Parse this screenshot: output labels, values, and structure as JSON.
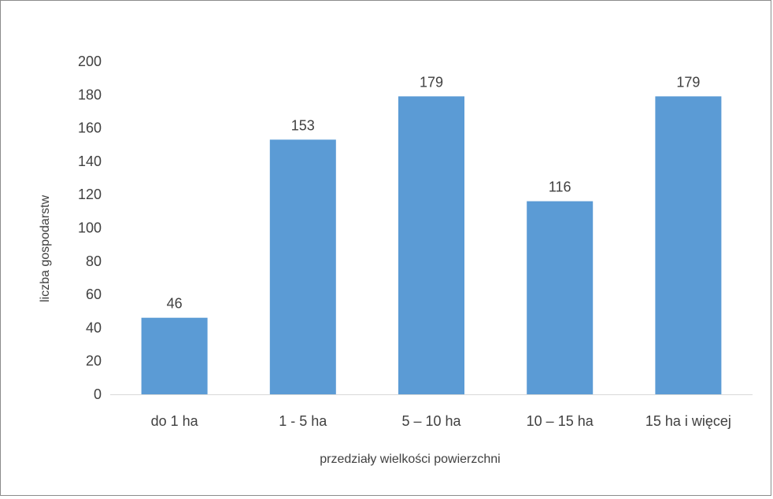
{
  "chart_data": {
    "type": "bar",
    "title": "",
    "xlabel": "przedziały wielkości powierzchni",
    "ylabel": "liczba gospodarstw",
    "categories": [
      "do 1 ha",
      "1 - 5 ha",
      "5 – 10 ha",
      "10 – 15 ha",
      "15 ha i więcej"
    ],
    "values": [
      46,
      153,
      179,
      116,
      179
    ],
    "data_labels": [
      "46",
      "153",
      "179",
      "116",
      "179"
    ],
    "ylim": [
      0,
      200
    ],
    "yticks": [
      0,
      20,
      40,
      60,
      80,
      100,
      120,
      140,
      160,
      180,
      200
    ],
    "grid": false,
    "legend": "none",
    "bar_color": "#5b9bd5"
  }
}
